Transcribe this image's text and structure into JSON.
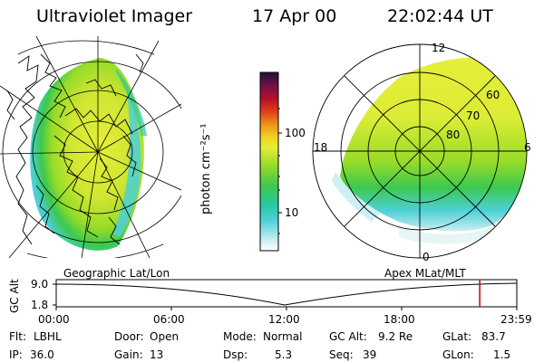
{
  "header": {
    "title": "Ultraviolet Imager",
    "date": "17 Apr 00",
    "time": "22:02:44 UT"
  },
  "colorbar": {
    "unit_label": "photon cm⁻²s⁻¹",
    "ticks": [
      {
        "label": "100",
        "value": 100
      },
      {
        "label": "10",
        "value": 10
      }
    ],
    "scale": "log",
    "range": [
      2.5,
      700
    ],
    "colors": [
      "#ffffff",
      "#c8eef2",
      "#4cd0d6",
      "#28c8a0",
      "#3cc850",
      "#98dc28",
      "#e6ee38",
      "#f0d020",
      "#f09a18",
      "#e04018",
      "#b81028",
      "#68104c",
      "#241030"
    ]
  },
  "geo_panel": {
    "caption": "Geographic Lat/Lon"
  },
  "polar_panel": {
    "caption": "Apex MLat/MLT",
    "mlt_labels": {
      "top": "12",
      "bottom": "0",
      "left": "18",
      "right": "6"
    },
    "lat_labels": [
      "60",
      "70",
      "80"
    ]
  },
  "timeline": {
    "axis_label": "GC Alt",
    "y_ticks": [
      "9.0",
      "1.8"
    ],
    "x_ticks": [
      "00:00",
      "06:00",
      "12:00",
      "18:00",
      "23:59"
    ],
    "current_marker_hours": 22.05,
    "marker_color": "#cc0000"
  },
  "status": {
    "row1": [
      {
        "key": "Flt:",
        "value": "LBHL"
      },
      {
        "key": "Door:",
        "value": "Open"
      },
      {
        "key": "Mode:",
        "value": "Normal"
      },
      {
        "key": "GC Alt:",
        "value": "9.2 Re"
      },
      {
        "key": "GLat:",
        "value": "83.7"
      }
    ],
    "row2": [
      {
        "key": "IP:",
        "value": "36.0"
      },
      {
        "key": "Gain:",
        "value": "13"
      },
      {
        "key": "Dsp:",
        "value": "5.3"
      },
      {
        "key": "Seq:",
        "value": "39"
      },
      {
        "key": "GLon:",
        "value": "1.5"
      }
    ]
  }
}
